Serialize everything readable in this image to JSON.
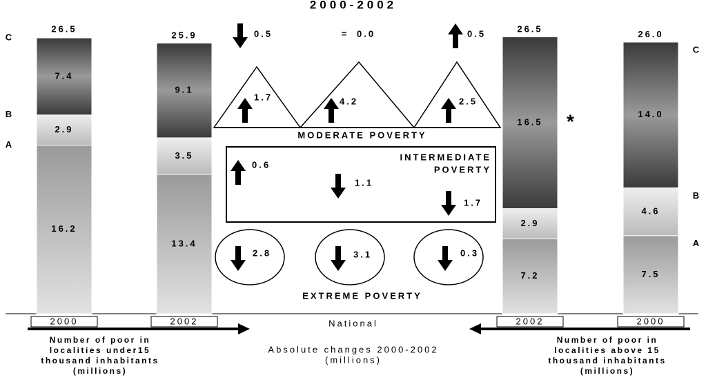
{
  "title": "2000-2002",
  "bars": [
    {
      "year": "2000",
      "total": 26.5,
      "total_label": "26.5",
      "values": [
        16.2,
        2.9,
        7.4
      ],
      "value_labels": [
        "16.2",
        "2.9",
        "7.4"
      ]
    },
    {
      "year": "2002",
      "total": 25.9,
      "total_label": "25.9",
      "values": [
        13.4,
        3.5,
        9.1
      ],
      "value_labels": [
        "13.4",
        "3.5",
        "9.1"
      ]
    },
    {
      "year": "2002",
      "total": 26.5,
      "total_label": "26.5",
      "values": [
        7.2,
        2.9,
        16.5
      ],
      "value_labels": [
        "7.2",
        "2.9",
        "16.5"
      ]
    },
    {
      "year": "2000",
      "total": 26.0,
      "total_label": "26.0",
      "values": [
        7.5,
        4.6,
        14.0
      ],
      "value_labels": [
        "7.5",
        "4.6",
        "14.0"
      ]
    }
  ],
  "levels_left": [
    "A",
    "B",
    "C"
  ],
  "levels_right": [
    "A",
    "B",
    "C"
  ],
  "note_mark": "*",
  "national_changes": [
    {
      "direction": "down",
      "value": "0.5"
    },
    {
      "sign": "=",
      "value": "0.0"
    },
    {
      "direction": "up",
      "value": "0.5"
    }
  ],
  "moderate": {
    "label": "MODERATE POVERTY",
    "changes": [
      {
        "direction": "up",
        "value": "1.7"
      },
      {
        "direction": "up",
        "value": "4.2"
      },
      {
        "direction": "up",
        "value": "2.5"
      }
    ]
  },
  "intermediate": {
    "label_lines": [
      "INTERMEDIATE",
      "POVERTY"
    ],
    "changes": [
      {
        "direction": "up",
        "value": "0.6"
      },
      {
        "direction": "down",
        "value": "1.1"
      },
      {
        "direction": "down",
        "value": "1.7"
      }
    ]
  },
  "extreme": {
    "label": "EXTREME POVERTY",
    "changes": [
      {
        "direction": "down",
        "value": "2.8"
      },
      {
        "direction": "down",
        "value": "3.1"
      },
      {
        "direction": "down",
        "value": "0.3"
      }
    ]
  },
  "caption_left": [
    "Number of poor in",
    "localities under15",
    "thousand inhabitants",
    "(millions)"
  ],
  "caption_center": {
    "title": "National",
    "lines": [
      "Absolute changes 2000-2002",
      "(millions)"
    ]
  },
  "caption_right": [
    "Number of poor in",
    "localities above 15",
    "thousand inhabitants",
    "(millions)"
  ]
}
